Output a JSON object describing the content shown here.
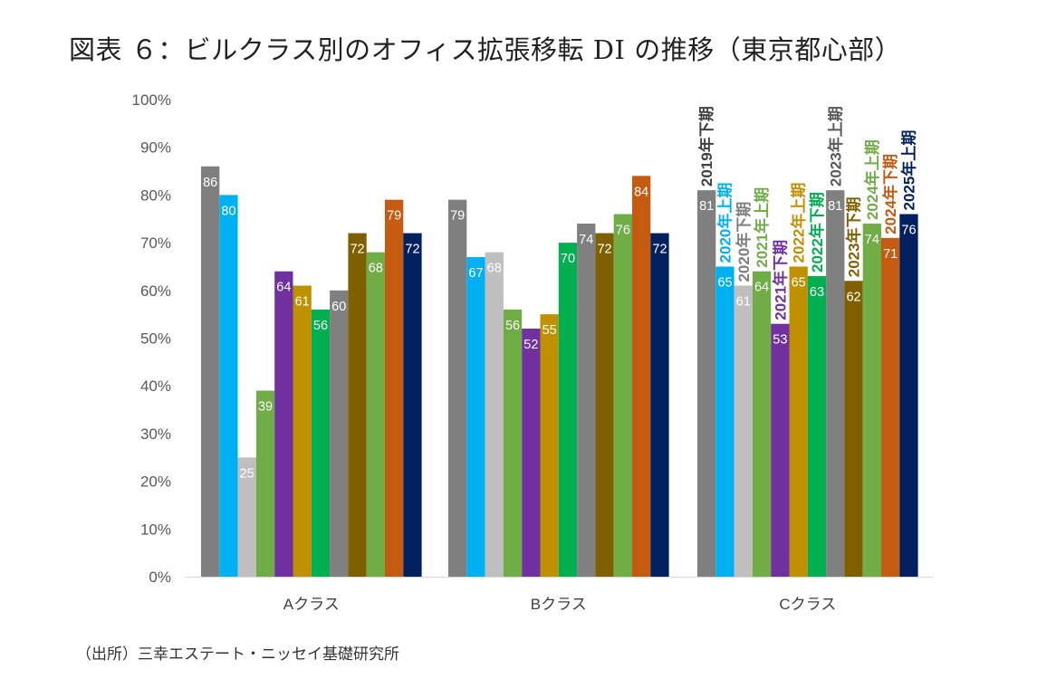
{
  "title": "図表 ６：ビルクラス別のオフィス拡張移転 DI の推移（東京都心部）",
  "source": "（出所）三幸エステート・ニッセイ基礎研究所",
  "chart_data": {
    "type": "bar",
    "title": "図表 ６：ビルクラス別のオフィス拡張移転 DI の推移（東京都心部）",
    "categories": [
      "Aクラス",
      "Bクラス",
      "Cクラス"
    ],
    "ylim": [
      0,
      100
    ],
    "y_ticks": [
      "0%",
      "10%",
      "20%",
      "30%",
      "40%",
      "50%",
      "60%",
      "70%",
      "80%",
      "90%",
      "100%"
    ],
    "grid": false,
    "legend": "series names printed vertically above the Cクラス bars",
    "series": [
      {
        "name": "2019年下期",
        "color": "#7f7f7f",
        "label_color": "#404040",
        "values": [
          86,
          79,
          81
        ]
      },
      {
        "name": "2020年上期",
        "color": "#00b0f0",
        "label_color": "#00b0f0",
        "values": [
          80,
          67,
          65
        ]
      },
      {
        "name": "2020年下期",
        "color": "#bfbfbf",
        "label_color": "#7f7f7f",
        "values": [
          25,
          68,
          61
        ]
      },
      {
        "name": "2021年上期",
        "color": "#70ad47",
        "label_color": "#70ad47",
        "values": [
          39,
          56,
          64
        ]
      },
      {
        "name": "2021年下期",
        "color": "#7030a0",
        "label_color": "#7030a0",
        "values": [
          64,
          52,
          53
        ]
      },
      {
        "name": "2022年上期",
        "color": "#bf9000",
        "label_color": "#bf9000",
        "values": [
          61,
          55,
          65
        ]
      },
      {
        "name": "2022年下期",
        "color": "#00b050",
        "label_color": "#00b050",
        "values": [
          56,
          70,
          63
        ]
      },
      {
        "name": "2023年上期",
        "color": "#808080",
        "label_color": "#595959",
        "values": [
          60,
          74,
          81
        ]
      },
      {
        "name": "2023年下期",
        "color": "#7f6000",
        "label_color": "#7f6000",
        "values": [
          72,
          72,
          62
        ]
      },
      {
        "name": "2024年上期",
        "color": "#70ad47",
        "label_color": "#70ad47",
        "values": [
          68,
          76,
          74
        ]
      },
      {
        "name": "2024年下期",
        "color": "#c55a11",
        "label_color": "#c55a11",
        "values": [
          79,
          84,
          71
        ]
      },
      {
        "name": "2025年上期",
        "color": "#002060",
        "label_color": "#002060",
        "values": [
          72,
          72,
          76
        ]
      }
    ]
  }
}
